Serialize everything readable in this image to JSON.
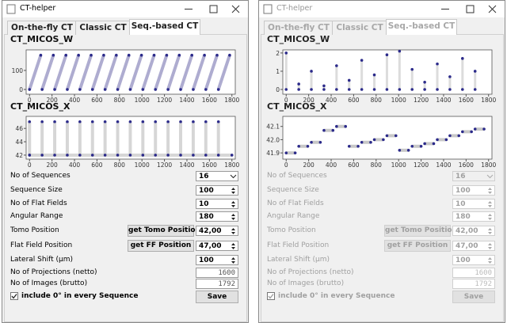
{
  "windows": [
    {
      "title": "CT-helper",
      "enabled": true,
      "tabs": [
        "On-the-fly CT",
        "Classic CT",
        "Seq.-based CT"
      ],
      "active_tab": 2,
      "plots": [
        {
          "title": "CT_MICOS_W",
          "xlim": [
            -30,
            1830
          ],
          "ylim": [
            -25,
            208
          ],
          "xticks": [
            0,
            200,
            400,
            600,
            800,
            1000,
            1200,
            1400,
            1600,
            1800
          ],
          "yticks": [
            0,
            100
          ],
          "line_color": "#aeacd0",
          "line_width": 4,
          "dot_color": "#2b2a8a",
          "x": [
            0,
            100,
            null,
            112,
            212,
            null,
            224,
            324,
            null,
            336,
            436,
            null,
            448,
            548,
            null,
            560,
            660,
            null,
            672,
            772,
            null,
            784,
            884,
            null,
            896,
            996,
            null,
            1008,
            1108,
            null,
            1120,
            1220,
            null,
            1232,
            1332,
            null,
            1344,
            1444,
            null,
            1456,
            1556,
            null,
            1568,
            1668,
            null,
            1680,
            1780
          ],
          "y": [
            0,
            180,
            null,
            0,
            180,
            null,
            0,
            180,
            null,
            0,
            180,
            null,
            0,
            180,
            null,
            0,
            180,
            null,
            0,
            180,
            null,
            0,
            180,
            null,
            0,
            180,
            null,
            0,
            180,
            null,
            0,
            180,
            null,
            0,
            180,
            null,
            0,
            180,
            null,
            0,
            180,
            null,
            0,
            180,
            null,
            0,
            180
          ]
        },
        {
          "title": "CT_MICOS_X",
          "xlim": [
            -30,
            1830
          ],
          "ylim": [
            41.4,
            47.8
          ],
          "xticks": [
            0,
            200,
            400,
            600,
            800,
            1000,
            1200,
            1400,
            1600,
            1800
          ],
          "yticks": [
            42,
            44,
            46
          ],
          "line_color": "#d6d6d6",
          "line_width": 4,
          "dot_color": "#2b2a8a",
          "x": [
            0,
            1800,
            null,
            0,
            0,
            null,
            112,
            112,
            null,
            224,
            224,
            null,
            336,
            336,
            null,
            448,
            448,
            null,
            560,
            560,
            null,
            672,
            672,
            null,
            784,
            784,
            null,
            896,
            896,
            null,
            1008,
            1008,
            null,
            1120,
            1120,
            null,
            1232,
            1232,
            null,
            1344,
            1344,
            null,
            1456,
            1456,
            null,
            1568,
            1568,
            null,
            1680,
            1680
          ],
          "y": [
            42,
            42,
            null,
            42,
            47,
            null,
            42,
            47,
            null,
            42,
            47,
            null,
            42,
            47,
            null,
            42,
            47,
            null,
            42,
            47,
            null,
            42,
            47,
            null,
            42,
            47,
            null,
            42,
            47,
            null,
            42,
            47,
            null,
            42,
            47,
            null,
            42,
            47,
            null,
            42,
            47,
            null,
            42,
            47,
            null,
            42,
            47,
            null,
            42,
            47
          ]
        }
      ],
      "form": [
        {
          "label": "No of Sequences",
          "value": 16,
          "control": "combo"
        },
        {
          "label": "Sequence Size",
          "value": 100,
          "control": "spin"
        },
        {
          "label": "No of Flat Fields",
          "value": 10,
          "control": "spin"
        },
        {
          "label": "Angular Range",
          "value": 180,
          "control": "spin"
        },
        {
          "label": "Tomo Position",
          "button": "get Tomo Position",
          "value": "42,00",
          "control": "spin"
        },
        {
          "label": "Flat Field Position",
          "button": "get FF Position",
          "value": "47,00",
          "control": "spin"
        },
        {
          "label": "Lateral Shift (µm)",
          "value": 100,
          "control": "spin"
        },
        {
          "label": "No of Projections (netto)",
          "value": 1600,
          "control": "display"
        },
        {
          "label": "No of Images (brutto)",
          "value": 1792,
          "control": "display"
        }
      ],
      "checkbox": {
        "label": "include 0° in every Sequence",
        "checked": true
      },
      "save": "Save"
    },
    {
      "title": "CT-helper",
      "enabled": false,
      "tabs": [
        "On-the-fly CT",
        "Classic CT",
        "Seq.-based CT"
      ],
      "active_tab": 2,
      "plots": [
        {
          "title": "CT_MICOS_W",
          "xlim": [
            -30,
            1830
          ],
          "ylim": [
            -0.26,
            2.17
          ],
          "xticks": [
            0,
            200,
            400,
            600,
            800,
            1000,
            1200,
            1400,
            1600,
            1800
          ],
          "yticks": [
            0,
            1,
            2
          ],
          "line_color": "#dcdcdc",
          "line_width": 3,
          "dot_color": "#2b2a8a",
          "x": [
            0,
            0,
            null,
            112,
            112,
            null,
            224,
            224,
            null,
            336,
            336,
            null,
            448,
            448,
            null,
            560,
            560,
            null,
            672,
            672,
            null,
            784,
            784,
            null,
            896,
            896,
            null,
            1008,
            1008,
            null,
            1120,
            1120,
            null,
            1232,
            1232,
            null,
            1344,
            1344,
            null,
            1456,
            1456,
            null,
            1568,
            1568,
            null,
            1680,
            1680
          ],
          "y": [
            0,
            2.0,
            null,
            0,
            0.3,
            null,
            0,
            1.0,
            null,
            0,
            0.2,
            null,
            0,
            1.3,
            null,
            0,
            0.5,
            null,
            0,
            1.6,
            null,
            0,
            0.8,
            null,
            0,
            1.9,
            null,
            0,
            2.1,
            null,
            0,
            1.1,
            null,
            0,
            0.4,
            null,
            0,
            1.4,
            null,
            0,
            0.7,
            null,
            0,
            1.7,
            null,
            0,
            1.0
          ]
        },
        {
          "title": "CT_MICOS_X",
          "xlim": [
            -30,
            1830
          ],
          "ylim": [
            41.853,
            42.176
          ],
          "xticks": [
            0,
            200,
            400,
            600,
            800,
            1000,
            1200,
            1400,
            1600,
            1800
          ],
          "yticks": [
            {
              "value": 41.9,
              "label": "41.9"
            },
            {
              "value": 42.0,
              "label": "42.0"
            },
            {
              "value": 42.1,
              "label": "42.1"
            }
          ],
          "line_color": "#c8c8c8",
          "line_width": 4,
          "dot_color": "#2b2a8a",
          "x": [
            0,
            80,
            null,
            112,
            192,
            null,
            224,
            304,
            null,
            336,
            416,
            null,
            448,
            528,
            null,
            560,
            640,
            null,
            672,
            752,
            null,
            784,
            864,
            null,
            896,
            976,
            null,
            1008,
            1088,
            null,
            1120,
            1200,
            null,
            1232,
            1312,
            null,
            1344,
            1424,
            null,
            1456,
            1536,
            null,
            1568,
            1648,
            null,
            1680,
            1760
          ],
          "y": [
            41.9,
            41.9,
            null,
            41.95,
            41.95,
            null,
            41.98,
            41.98,
            null,
            42.07,
            42.07,
            null,
            42.1,
            42.1,
            null,
            41.95,
            41.95,
            null,
            41.98,
            41.98,
            null,
            42.0,
            42.0,
            null,
            42.03,
            42.03,
            null,
            41.92,
            41.92,
            null,
            41.95,
            41.95,
            null,
            41.97,
            41.97,
            null,
            42.0,
            42.0,
            null,
            42.03,
            42.03,
            null,
            42.06,
            42.06,
            null,
            42.08,
            42.08
          ]
        }
      ],
      "form": [
        {
          "label": "No of Sequences",
          "value": 16,
          "control": "combo"
        },
        {
          "label": "Sequence Size",
          "value": 100,
          "control": "spin"
        },
        {
          "label": "No of Flat Fields",
          "value": 10,
          "control": "spin"
        },
        {
          "label": "Angular Range",
          "value": 180,
          "control": "spin"
        },
        {
          "label": "Tomo Position",
          "button": "get Tomo Position",
          "value": "42,00",
          "control": "spin"
        },
        {
          "label": "Flat Field Position",
          "button": "get FF Position",
          "value": "47,00",
          "control": "spin"
        },
        {
          "label": "Lateral Shift (µm)",
          "value": 100,
          "control": "spin"
        },
        {
          "label": "No of Projections (netto)",
          "value": 1600,
          "control": "display"
        },
        {
          "label": "No of Images (brutto)",
          "value": 1792,
          "control": "display"
        }
      ],
      "checkbox": {
        "label": "include 0° in every Sequence",
        "checked": true
      },
      "save": "Save"
    }
  ]
}
